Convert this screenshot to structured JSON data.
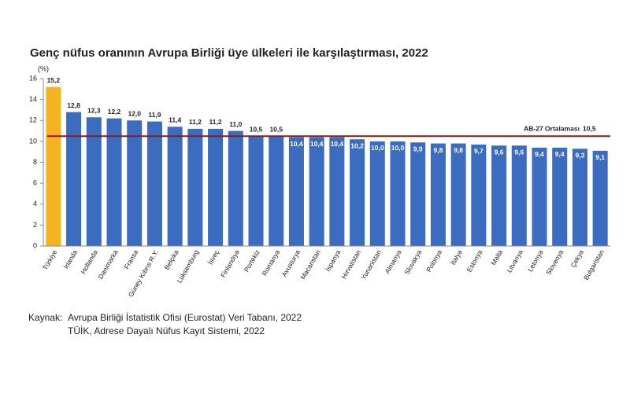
{
  "chart_data": {
    "type": "bar",
    "title": "Genç nüfus oranının Avrupa Birliği üye ülkeleri ile karşılaştırması, 2022",
    "y_unit": "(%)",
    "categories": [
      "Türkiye",
      "İrlanda",
      "Hollanda",
      "Danimarka",
      "Fransa",
      "Güney Kıbrıs R.Y.",
      "Belçika",
      "Lüksemburg",
      "İsveç",
      "Finlandiya",
      "Portekiz",
      "Romanya",
      "Avusturya",
      "Macaristan",
      "İspanya",
      "Hırvatistan",
      "Yunanistan",
      "Almanya",
      "Slovakya",
      "Polonya",
      "İtalya",
      "Estonya",
      "Malta",
      "Litvanya",
      "Letonya",
      "Slovenya",
      "Çekya",
      "Bulgaristan"
    ],
    "values": [
      15.2,
      12.8,
      12.3,
      12.2,
      12.0,
      11.9,
      11.4,
      11.2,
      11.2,
      11.0,
      10.5,
      10.5,
      10.4,
      10.4,
      10.4,
      10.2,
      10.0,
      10.0,
      9.9,
      9.8,
      9.8,
      9.7,
      9.6,
      9.6,
      9.4,
      9.4,
      9.3,
      9.1
    ],
    "value_labels": [
      "15,2",
      "12,8",
      "12,3",
      "12,2",
      "12,0",
      "11,9",
      "11,4",
      "11,2",
      "11,2",
      "11,0",
      "10,5",
      "10,5",
      "10,4",
      "10,4",
      "10,4",
      "10,2",
      "10,0",
      "10,0",
      "9,9",
      "9,8",
      "9,8",
      "9,7",
      "9,6",
      "9,6",
      "9,4",
      "9,4",
      "9,3",
      "9,1"
    ],
    "colors": [
      "#f5b324",
      "#3b6cbf",
      "#3b6cbf",
      "#3b6cbf",
      "#3b6cbf",
      "#3b6cbf",
      "#3b6cbf",
      "#3b6cbf",
      "#3b6cbf",
      "#3b6cbf",
      "#3b6cbf",
      "#3b6cbf",
      "#3b6cbf",
      "#3b6cbf",
      "#3b6cbf",
      "#3b6cbf",
      "#3b6cbf",
      "#3b6cbf",
      "#3b6cbf",
      "#3b6cbf",
      "#3b6cbf",
      "#3b6cbf",
      "#3b6cbf",
      "#3b6cbf",
      "#3b6cbf",
      "#3b6cbf",
      "#3b6cbf",
      "#3b6cbf"
    ],
    "ylim": [
      0,
      16
    ],
    "yticks": [
      0,
      2,
      4,
      6,
      8,
      10,
      12,
      14,
      16
    ],
    "reference_line": {
      "value": 10.5,
      "label": "AB-27 Ortalaması",
      "value_label": "10,5",
      "color": "#8b1a1a"
    },
    "source": {
      "prefix": "Kaynak:",
      "lines": [
        "Avrupa Birliği İstatistik Ofisi (Eurostat) Veri Tabanı, 2022",
        "TÜİK, Adrese Dayalı Nüfus Kayıt Sistemi, 2022"
      ]
    }
  }
}
